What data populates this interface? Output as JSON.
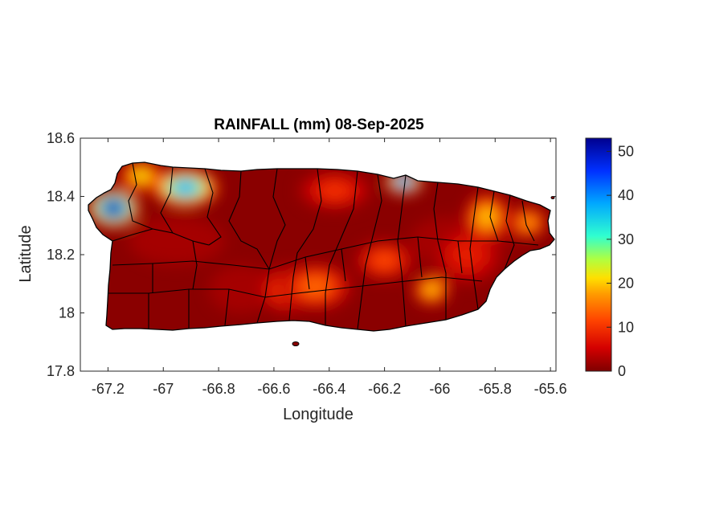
{
  "title": "RAINFALL (mm) 08-Sep-2025",
  "x_axis": {
    "label": "Longitude",
    "range": [
      -67.3,
      -65.58
    ],
    "ticks": [
      -67.2,
      -67,
      -66.8,
      -66.6,
      -66.4,
      -66.2,
      -66,
      -65.8,
      -65.6
    ],
    "tick_labels": [
      "-67.2",
      "-67",
      "-66.8",
      "-66.6",
      "-66.4",
      "-66.2",
      "-66",
      "-65.8",
      "-65.6"
    ]
  },
  "y_axis": {
    "label": "Latitude",
    "range": [
      17.8,
      18.6
    ],
    "ticks": [
      17.8,
      18.0,
      18.2,
      18.4,
      18.6
    ],
    "tick_labels": [
      "17.8",
      "18",
      "18.2",
      "18.4",
      "18.6"
    ]
  },
  "colorbar": {
    "range": [
      0,
      53
    ],
    "ticks": [
      0,
      10,
      20,
      30,
      40,
      50
    ],
    "tick_labels": [
      "0",
      "10",
      "20",
      "30",
      "40",
      "50"
    ],
    "colormap": "jet-reversed",
    "colors": [
      "#7f0000",
      "#d40000",
      "#ff4500",
      "#ff9a00",
      "#ffe000",
      "#b0ff40",
      "#30ffd0",
      "#00a8ff",
      "#0030ff",
      "#00008f"
    ]
  },
  "map": {
    "region": "Puerto Rico",
    "background_value": 0,
    "base_color": "#8a0000",
    "outline_color": "#000000",
    "rain_cells": [
      {
        "lon": -67.18,
        "lat": 18.36,
        "rx": 0.07,
        "ry": 0.05,
        "value": 52
      },
      {
        "lon": -66.92,
        "lat": 18.43,
        "rx": 0.09,
        "ry": 0.05,
        "value": 38
      },
      {
        "lon": -67.08,
        "lat": 18.47,
        "rx": 0.06,
        "ry": 0.04,
        "value": 22
      },
      {
        "lon": -66.13,
        "lat": 18.45,
        "rx": 0.05,
        "ry": 0.03,
        "value": 45
      },
      {
        "lon": -65.83,
        "lat": 18.33,
        "rx": 0.06,
        "ry": 0.06,
        "value": 20
      },
      {
        "lon": -65.68,
        "lat": 18.31,
        "rx": 0.05,
        "ry": 0.04,
        "value": 18
      },
      {
        "lon": -66.03,
        "lat": 18.08,
        "rx": 0.05,
        "ry": 0.04,
        "value": 20
      },
      {
        "lon": -66.45,
        "lat": 18.09,
        "rx": 0.1,
        "ry": 0.06,
        "value": 14
      },
      {
        "lon": -66.2,
        "lat": 18.18,
        "rx": 0.08,
        "ry": 0.05,
        "value": 12
      },
      {
        "lon": -66.55,
        "lat": 18.08,
        "rx": 0.08,
        "ry": 0.06,
        "value": 12
      },
      {
        "lon": -66.38,
        "lat": 18.42,
        "rx": 0.1,
        "ry": 0.05,
        "value": 10
      },
      {
        "lon": -65.9,
        "lat": 18.2,
        "rx": 0.1,
        "ry": 0.08,
        "value": 8
      }
    ]
  }
}
